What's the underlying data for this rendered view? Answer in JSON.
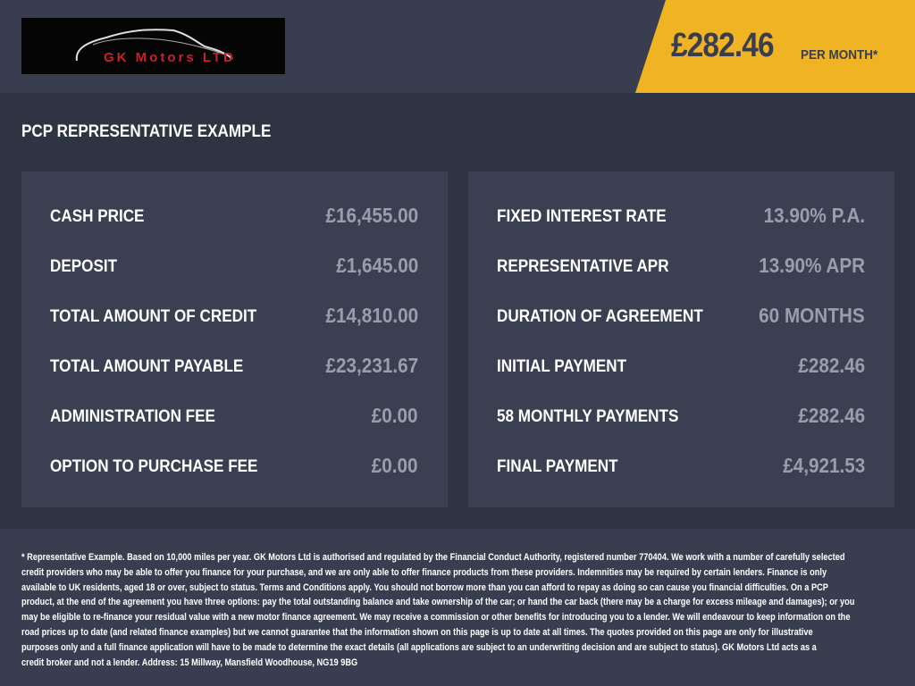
{
  "header": {
    "logo_text": "GK Motors LTD",
    "price": "£282.46",
    "per_month": "PER MONTH*"
  },
  "title": "PCP REPRESENTATIVE EXAMPLE",
  "colors": {
    "accent": "#f0b323",
    "header_bg": "#383e50",
    "page_bg": "#2f3442",
    "panel_bg": "#3a4052",
    "value_text": "#9a9eab"
  },
  "left_panel": [
    {
      "label": "CASH PRICE",
      "value": "£16,455.00"
    },
    {
      "label": "DEPOSIT",
      "value": "£1,645.00"
    },
    {
      "label": "TOTAL AMOUNT OF CREDIT",
      "value": "£14,810.00"
    },
    {
      "label": "TOTAL AMOUNT PAYABLE",
      "value": "£23,231.67"
    },
    {
      "label": "ADMINISTRATION FEE",
      "value": "£0.00"
    },
    {
      "label": "OPTION TO PURCHASE FEE",
      "value": "£0.00"
    }
  ],
  "right_panel": [
    {
      "label": "FIXED INTEREST RATE",
      "value": "13.90% P.A."
    },
    {
      "label": "REPRESENTATIVE APR",
      "value": "13.90% APR"
    },
    {
      "label": "DURATION OF AGREEMENT",
      "value": "60 MONTHS"
    },
    {
      "label": "INITIAL PAYMENT",
      "value": "£282.46"
    },
    {
      "label": "58 MONTHLY PAYMENTS",
      "value": "£282.46"
    },
    {
      "label": "FINAL PAYMENT",
      "value": "£4,921.53"
    }
  ],
  "footer_lines": [
    "* Representative Example. Based on 10,000 miles per year. GK Motors Ltd is authorised and regulated by the Financial Conduct Authority, registered number 770404. We work with a number of carefully selected",
    "credit providers who may be able to offer you finance for your purchase, and we are only able to offer finance products from these providers. Indemnities may be required by certain lenders. Finance is only",
    "available to UK residents, aged 18 or over, subject to status. Terms and Conditions apply. You should not borrow more than you can afford to repay as doing so can cause you financial difficulties. On a PCP",
    "product, at the end of the agreement you have three options: pay the total outstanding balance and take ownership of the car; or hand the car back (there may be a charge for excess mileage and damages); or you",
    "may be eligible to re-finance your residual value with a new motor finance agreement. We may receive a commission or other benefits for introducing you to a lender. We will endeavour to keep information on the",
    "road prices up to date (and related finance examples) but we cannot guarantee that the information shown on this page is up to date at all times. The quotes provided on this page are only for illustrative",
    "purposes only and a full finance application will have to be made to determine the exact details (all applications are subject to an underwriting decision and are subject to status). GK Motors Ltd acts as a",
    "credit broker and not a lender. Address: 15 Millway, Mansfield Woodhouse, NG19 9BG"
  ]
}
